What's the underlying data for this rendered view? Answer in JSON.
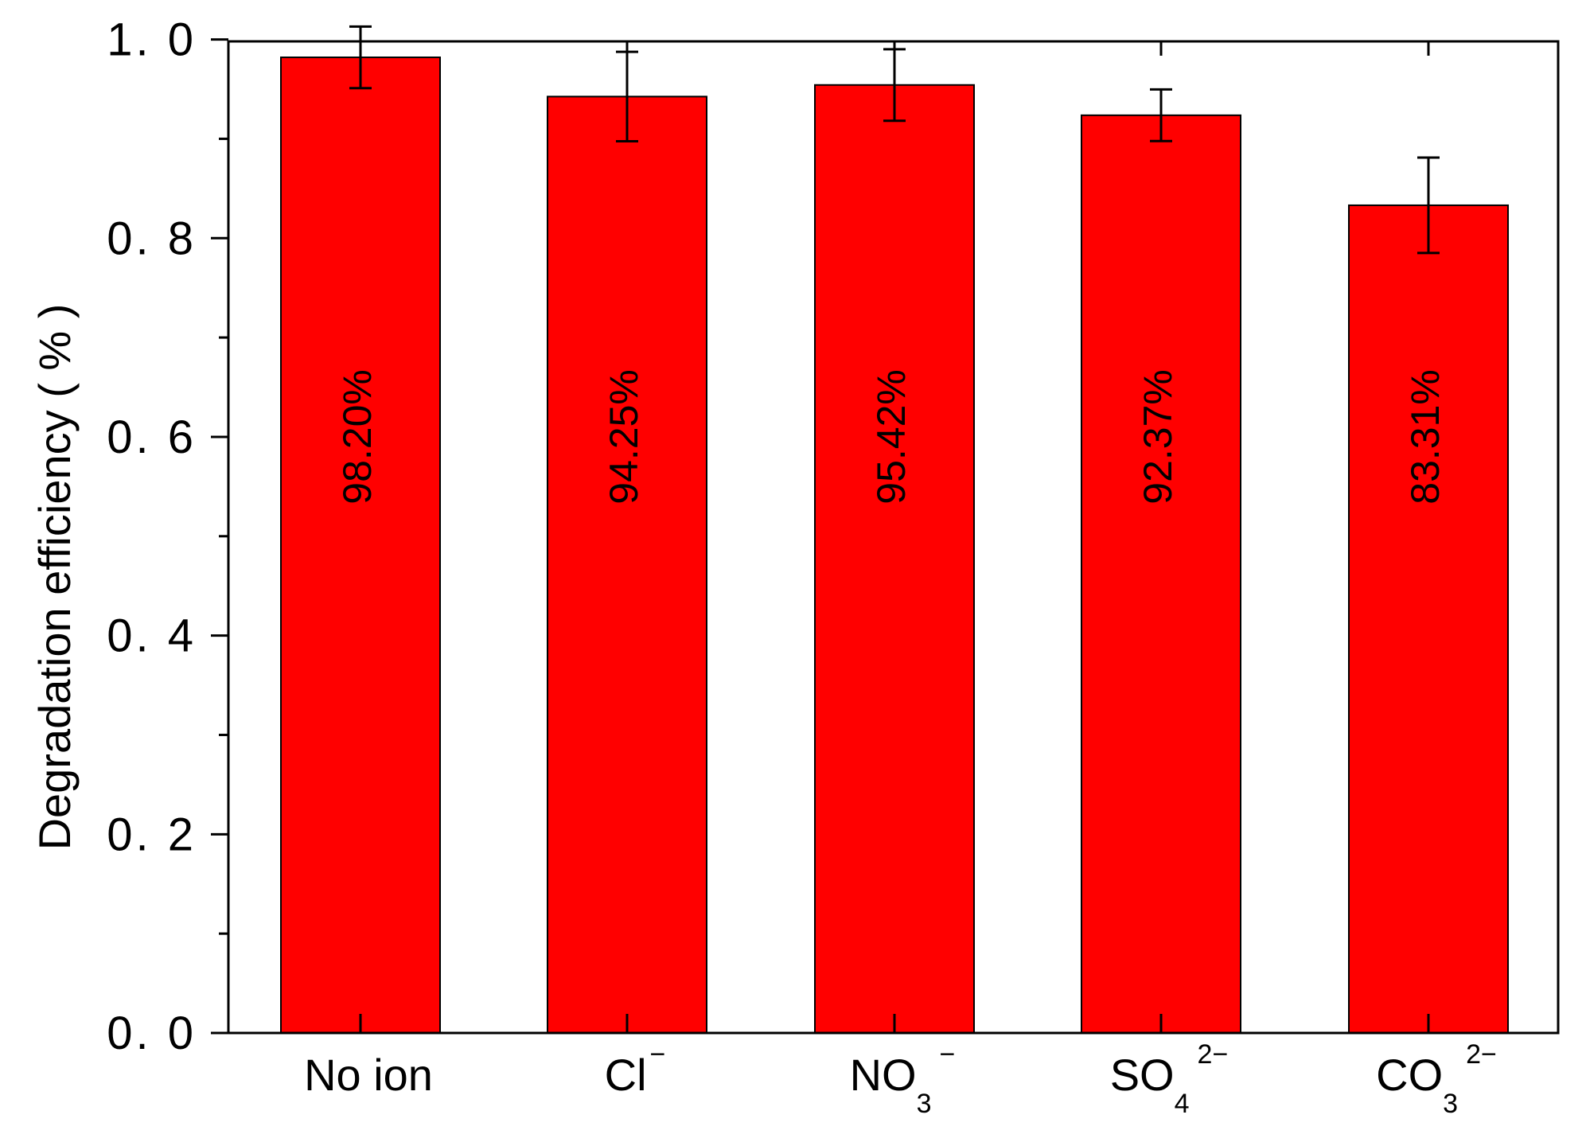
{
  "chart_data": {
    "type": "bar",
    "categories": [
      {
        "base": "No ion",
        "sub": "",
        "sup": ""
      },
      {
        "base": "Cl",
        "sub": "",
        "sup": "−"
      },
      {
        "base": "NO",
        "sub": "3",
        "sup": "−"
      },
      {
        "base": "SO",
        "sub": "4",
        "sup": "2−"
      },
      {
        "base": "CO",
        "sub": "3",
        "sup": "2−"
      }
    ],
    "values": [
      0.982,
      0.9425,
      0.9542,
      0.9237,
      0.8331
    ],
    "errors": [
      0.031,
      0.045,
      0.036,
      0.026,
      0.048
    ],
    "data_labels": [
      "98.20%",
      "94.25%",
      "95.42%",
      "92.37%",
      "83.31%"
    ],
    "ylabel": "Degradation efficiency ( % )",
    "xlabel": "",
    "title": "",
    "ylim": [
      0.0,
      1.05
    ],
    "yticks": [
      0.0,
      0.2,
      0.4,
      0.6,
      0.8,
      1.0
    ],
    "ytick_labels": [
      "0. 0",
      "0. 2",
      "0. 4",
      "0. 6",
      "0. 8",
      "1. 0"
    ],
    "bar_color": "#ff0000",
    "grid": false,
    "legend": "none"
  }
}
